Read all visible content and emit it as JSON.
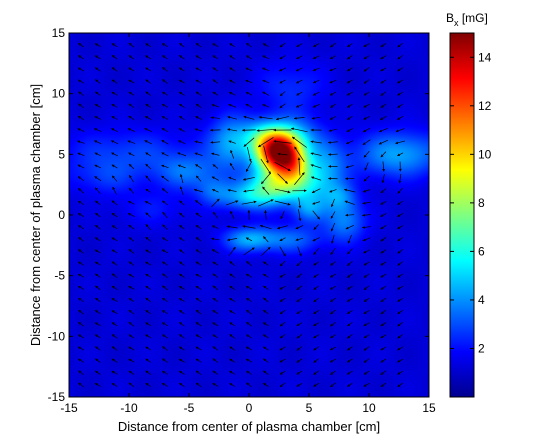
{
  "chart_data": {
    "type": "heatmap",
    "xlabel": "Distance from center of plasma chamber [cm]",
    "ylabel": "Distance from center of plasma chamber [cm]",
    "xlim": [
      -15,
      15
    ],
    "ylim": [
      -15,
      15
    ],
    "xticks": [
      "-15",
      "-10",
      "-5",
      "0",
      "5",
      "10",
      "15"
    ],
    "yticks": [
      "15",
      "10",
      "5",
      "0",
      "-5",
      "-10",
      "-15"
    ],
    "colorbar": {
      "title_main": "B",
      "title_sub": "x",
      "title_unit": " [mG]",
      "range": [
        0,
        15
      ],
      "ticks": [
        "14",
        "12",
        "10",
        "8",
        "6",
        "4",
        "2"
      ],
      "colormap": "jet"
    },
    "background_level": 1.3,
    "blobs": [
      {
        "x": 2.5,
        "y": 5.2,
        "sx": 1.3,
        "sy": 1.2,
        "a": 13.5
      },
      {
        "x": 3.8,
        "y": 4.0,
        "sx": 1.0,
        "sy": 0.9,
        "a": 4.0
      },
      {
        "x": 1.0,
        "y": 6.5,
        "sx": 1.2,
        "sy": 1.0,
        "a": 2.5
      },
      {
        "x": 4.0,
        "y": 6.5,
        "sx": 1.5,
        "sy": 1.2,
        "a": 2.0
      },
      {
        "x": 2.0,
        "y": 2.5,
        "sx": 1.5,
        "sy": 1.0,
        "a": 4.5
      },
      {
        "x": 4.5,
        "y": 2.5,
        "sx": 1.5,
        "sy": 1.0,
        "a": 3.0
      },
      {
        "x": 0.0,
        "y": 1.5,
        "sx": 1.8,
        "sy": 0.8,
        "a": 3.0
      },
      {
        "x": -1.5,
        "y": 6.0,
        "sx": 1.3,
        "sy": 1.5,
        "a": 3.0
      },
      {
        "x": -5.0,
        "y": 3.5,
        "sx": 1.8,
        "sy": 1.0,
        "a": 2.0
      },
      {
        "x": 6.5,
        "y": 4.0,
        "sx": 1.2,
        "sy": 1.5,
        "a": 2.5
      },
      {
        "x": 5.0,
        "y": 0.5,
        "sx": 1.0,
        "sy": 0.8,
        "a": 2.5
      },
      {
        "x": 8.0,
        "y": -0.5,
        "sx": 1.2,
        "sy": 1.2,
        "a": 2.5
      },
      {
        "x": 7.5,
        "y": 1.5,
        "sx": 1.0,
        "sy": 0.8,
        "a": 2.0
      },
      {
        "x": 0.0,
        "y": -2.0,
        "sx": 1.5,
        "sy": 0.7,
        "a": 3.0
      },
      {
        "x": 3.5,
        "y": -2.0,
        "sx": 1.8,
        "sy": 0.8,
        "a": 2.0
      },
      {
        "x": 12.5,
        "y": 5.0,
        "sx": 2.5,
        "sy": 1.3,
        "a": 3.0
      },
      {
        "x": -10.0,
        "y": 5.0,
        "sx": 4.0,
        "sy": 1.4,
        "a": 1.5
      },
      {
        "x": -3.0,
        "y": 2.0,
        "sx": 1.0,
        "sy": 0.8,
        "a": 1.5
      },
      {
        "x": -12.0,
        "y": 3.0,
        "sx": 2.0,
        "sy": 1.0,
        "a": 1.0
      },
      {
        "x": 3.5,
        "y": 10.5,
        "sx": 2.0,
        "sy": 1.5,
        "a": 1.2
      },
      {
        "x": -8.0,
        "y": 0.5,
        "sx": 2.0,
        "sy": 1.0,
        "a": 0.8
      }
    ]
  }
}
